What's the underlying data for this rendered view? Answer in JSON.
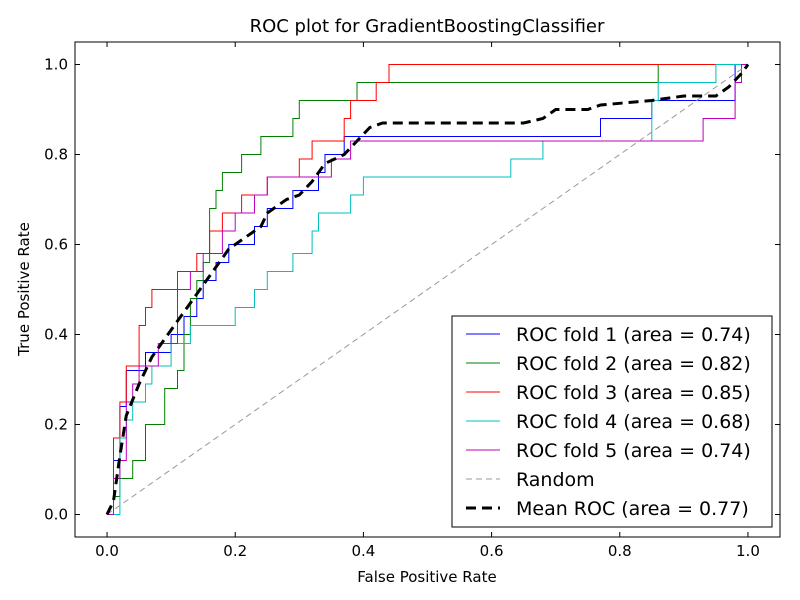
{
  "chart_data": {
    "type": "line",
    "title": "ROC plot for GradientBoostingClassifier",
    "xlabel": "False Positive Rate",
    "ylabel": "True Positive Rate",
    "xlim": [
      -0.05,
      1.05
    ],
    "ylim": [
      -0.05,
      1.05
    ],
    "xticks": [
      0.0,
      0.2,
      0.4,
      0.6,
      0.8,
      1.0
    ],
    "yticks": [
      0.0,
      0.2,
      0.4,
      0.6,
      0.8,
      1.0
    ],
    "xtick_labels": [
      "0.0",
      "0.2",
      "0.4",
      "0.6",
      "0.8",
      "1.0"
    ],
    "ytick_labels": [
      "0.0",
      "0.2",
      "0.4",
      "0.6",
      "0.8",
      "1.0"
    ],
    "grid": false,
    "legend_position": "lower-right",
    "series": [
      {
        "name": "ROC fold 1 (area = 0.74)",
        "color": "#0000ff",
        "dash": "solid",
        "points": [
          [
            0,
            0
          ],
          [
            0.01,
            0
          ],
          [
            0.01,
            0.12
          ],
          [
            0.02,
            0.12
          ],
          [
            0.02,
            0.24
          ],
          [
            0.03,
            0.24
          ],
          [
            0.03,
            0.32
          ],
          [
            0.06,
            0.32
          ],
          [
            0.06,
            0.36
          ],
          [
            0.1,
            0.36
          ],
          [
            0.1,
            0.4
          ],
          [
            0.12,
            0.4
          ],
          [
            0.12,
            0.44
          ],
          [
            0.14,
            0.44
          ],
          [
            0.14,
            0.48
          ],
          [
            0.15,
            0.48
          ],
          [
            0.15,
            0.52
          ],
          [
            0.17,
            0.52
          ],
          [
            0.17,
            0.56
          ],
          [
            0.19,
            0.56
          ],
          [
            0.19,
            0.6
          ],
          [
            0.23,
            0.6
          ],
          [
            0.23,
            0.64
          ],
          [
            0.25,
            0.64
          ],
          [
            0.25,
            0.68
          ],
          [
            0.29,
            0.68
          ],
          [
            0.29,
            0.72
          ],
          [
            0.33,
            0.72
          ],
          [
            0.33,
            0.76
          ],
          [
            0.34,
            0.76
          ],
          [
            0.34,
            0.8
          ],
          [
            0.37,
            0.8
          ],
          [
            0.37,
            0.84
          ],
          [
            0.68,
            0.84
          ],
          [
            0.68,
            0.84
          ],
          [
            0.77,
            0.84
          ],
          [
            0.77,
            0.88
          ],
          [
            0.85,
            0.88
          ],
          [
            0.85,
            0.92
          ],
          [
            0.98,
            0.92
          ],
          [
            0.98,
            1.0
          ],
          [
            1.0,
            1.0
          ]
        ]
      },
      {
        "name": "ROC fold 2 (area = 0.82)",
        "color": "#008000",
        "dash": "solid",
        "points": [
          [
            0,
            0
          ],
          [
            0.01,
            0
          ],
          [
            0.01,
            0.04
          ],
          [
            0.02,
            0.04
          ],
          [
            0.02,
            0.08
          ],
          [
            0.04,
            0.08
          ],
          [
            0.04,
            0.12
          ],
          [
            0.06,
            0.12
          ],
          [
            0.06,
            0.16
          ],
          [
            0.06,
            0.2
          ],
          [
            0.09,
            0.2
          ],
          [
            0.09,
            0.28
          ],
          [
            0.11,
            0.28
          ],
          [
            0.11,
            0.32
          ],
          [
            0.12,
            0.32
          ],
          [
            0.12,
            0.36
          ],
          [
            0.12,
            0.4
          ],
          [
            0.13,
            0.4
          ],
          [
            0.13,
            0.48
          ],
          [
            0.14,
            0.48
          ],
          [
            0.14,
            0.52
          ],
          [
            0.15,
            0.52
          ],
          [
            0.15,
            0.56
          ],
          [
            0.16,
            0.56
          ],
          [
            0.16,
            0.6
          ],
          [
            0.16,
            0.64
          ],
          [
            0.16,
            0.68
          ],
          [
            0.17,
            0.68
          ],
          [
            0.17,
            0.72
          ],
          [
            0.18,
            0.72
          ],
          [
            0.18,
            0.76
          ],
          [
            0.21,
            0.76
          ],
          [
            0.21,
            0.8
          ],
          [
            0.24,
            0.8
          ],
          [
            0.24,
            0.84
          ],
          [
            0.29,
            0.84
          ],
          [
            0.29,
            0.88
          ],
          [
            0.3,
            0.88
          ],
          [
            0.3,
            0.92
          ],
          [
            0.39,
            0.92
          ],
          [
            0.39,
            0.96
          ],
          [
            0.86,
            0.96
          ],
          [
            0.86,
            1.0
          ],
          [
            1.0,
            1.0
          ]
        ]
      },
      {
        "name": "ROC fold 3 (area = 0.85)",
        "color": "#ff0000",
        "dash": "solid",
        "points": [
          [
            0,
            0
          ],
          [
            0.01,
            0
          ],
          [
            0.01,
            0.08
          ],
          [
            0.01,
            0.17
          ],
          [
            0.02,
            0.17
          ],
          [
            0.02,
            0.25
          ],
          [
            0.03,
            0.25
          ],
          [
            0.03,
            0.29
          ],
          [
            0.03,
            0.33
          ],
          [
            0.05,
            0.33
          ],
          [
            0.05,
            0.42
          ],
          [
            0.06,
            0.42
          ],
          [
            0.06,
            0.46
          ],
          [
            0.07,
            0.46
          ],
          [
            0.07,
            0.5
          ],
          [
            0.11,
            0.5
          ],
          [
            0.11,
            0.54
          ],
          [
            0.14,
            0.54
          ],
          [
            0.14,
            0.58
          ],
          [
            0.16,
            0.58
          ],
          [
            0.16,
            0.63
          ],
          [
            0.18,
            0.63
          ],
          [
            0.18,
            0.67
          ],
          [
            0.21,
            0.67
          ],
          [
            0.21,
            0.71
          ],
          [
            0.25,
            0.71
          ],
          [
            0.25,
            0.75
          ],
          [
            0.3,
            0.75
          ],
          [
            0.3,
            0.79
          ],
          [
            0.32,
            0.79
          ],
          [
            0.32,
            0.83
          ],
          [
            0.37,
            0.83
          ],
          [
            0.37,
            0.88
          ],
          [
            0.38,
            0.88
          ],
          [
            0.38,
            0.92
          ],
          [
            0.42,
            0.92
          ],
          [
            0.42,
            0.96
          ],
          [
            0.44,
            0.96
          ],
          [
            0.44,
            1.0
          ],
          [
            1.0,
            1.0
          ]
        ]
      },
      {
        "name": "ROC fold 4 (area = 0.68)",
        "color": "#00bfbf",
        "dash": "solid",
        "points": [
          [
            0,
            0
          ],
          [
            0.02,
            0
          ],
          [
            0.02,
            0.08
          ],
          [
            0.02,
            0.17
          ],
          [
            0.03,
            0.17
          ],
          [
            0.03,
            0.21
          ],
          [
            0.04,
            0.21
          ],
          [
            0.04,
            0.25
          ],
          [
            0.06,
            0.25
          ],
          [
            0.06,
            0.29
          ],
          [
            0.07,
            0.29
          ],
          [
            0.07,
            0.33
          ],
          [
            0.1,
            0.33
          ],
          [
            0.1,
            0.38
          ],
          [
            0.13,
            0.38
          ],
          [
            0.13,
            0.42
          ],
          [
            0.2,
            0.42
          ],
          [
            0.2,
            0.46
          ],
          [
            0.23,
            0.46
          ],
          [
            0.23,
            0.5
          ],
          [
            0.25,
            0.5
          ],
          [
            0.25,
            0.54
          ],
          [
            0.29,
            0.54
          ],
          [
            0.29,
            0.58
          ],
          [
            0.32,
            0.58
          ],
          [
            0.32,
            0.63
          ],
          [
            0.33,
            0.63
          ],
          [
            0.33,
            0.67
          ],
          [
            0.38,
            0.67
          ],
          [
            0.38,
            0.71
          ],
          [
            0.4,
            0.71
          ],
          [
            0.4,
            0.75
          ],
          [
            0.63,
            0.75
          ],
          [
            0.63,
            0.79
          ],
          [
            0.68,
            0.79
          ],
          [
            0.68,
            0.83
          ],
          [
            0.85,
            0.83
          ],
          [
            0.85,
            0.88
          ],
          [
            0.85,
            0.92
          ],
          [
            0.86,
            0.92
          ],
          [
            0.86,
            0.96
          ],
          [
            0.95,
            0.96
          ],
          [
            0.95,
            1.0
          ],
          [
            1.0,
            1.0
          ]
        ]
      },
      {
        "name": "ROC fold 5 (area = 0.74)",
        "color": "#bf00bf",
        "dash": "solid",
        "points": [
          [
            0,
            0
          ],
          [
            0.01,
            0
          ],
          [
            0.01,
            0.08
          ],
          [
            0.02,
            0.08
          ],
          [
            0.02,
            0.12
          ],
          [
            0.03,
            0.12
          ],
          [
            0.03,
            0.25
          ],
          [
            0.04,
            0.25
          ],
          [
            0.04,
            0.29
          ],
          [
            0.05,
            0.29
          ],
          [
            0.05,
            0.33
          ],
          [
            0.08,
            0.33
          ],
          [
            0.08,
            0.38
          ],
          [
            0.11,
            0.38
          ],
          [
            0.11,
            0.5
          ],
          [
            0.13,
            0.5
          ],
          [
            0.13,
            0.54
          ],
          [
            0.15,
            0.54
          ],
          [
            0.15,
            0.58
          ],
          [
            0.18,
            0.58
          ],
          [
            0.18,
            0.63
          ],
          [
            0.2,
            0.63
          ],
          [
            0.2,
            0.67
          ],
          [
            0.23,
            0.67
          ],
          [
            0.23,
            0.71
          ],
          [
            0.25,
            0.71
          ],
          [
            0.25,
            0.75
          ],
          [
            0.35,
            0.75
          ],
          [
            0.35,
            0.79
          ],
          [
            0.38,
            0.79
          ],
          [
            0.38,
            0.83
          ],
          [
            0.93,
            0.83
          ],
          [
            0.93,
            0.88
          ],
          [
            0.98,
            0.88
          ],
          [
            0.98,
            0.96
          ],
          [
            0.99,
            0.96
          ],
          [
            0.99,
            1.0
          ],
          [
            1.0,
            1.0
          ]
        ]
      },
      {
        "name": "Random",
        "color": "#999999",
        "dash": "dashed-thin",
        "points": [
          [
            0,
            0
          ],
          [
            1,
            1
          ]
        ]
      },
      {
        "name": "Mean ROC (area = 0.77)",
        "color": "#000000",
        "dash": "dashed-thick",
        "points": [
          [
            0,
            0
          ],
          [
            0.01,
            0.03
          ],
          [
            0.02,
            0.13
          ],
          [
            0.03,
            0.22
          ],
          [
            0.05,
            0.29
          ],
          [
            0.07,
            0.35
          ],
          [
            0.09,
            0.39
          ],
          [
            0.11,
            0.43
          ],
          [
            0.13,
            0.47
          ],
          [
            0.15,
            0.51
          ],
          [
            0.17,
            0.55
          ],
          [
            0.19,
            0.59
          ],
          [
            0.21,
            0.61
          ],
          [
            0.24,
            0.64
          ],
          [
            0.25,
            0.67
          ],
          [
            0.28,
            0.7
          ],
          [
            0.3,
            0.71
          ],
          [
            0.32,
            0.74
          ],
          [
            0.34,
            0.78
          ],
          [
            0.37,
            0.8
          ],
          [
            0.39,
            0.83
          ],
          [
            0.41,
            0.86
          ],
          [
            0.43,
            0.87
          ],
          [
            0.5,
            0.87
          ],
          [
            0.6,
            0.87
          ],
          [
            0.65,
            0.87
          ],
          [
            0.68,
            0.88
          ],
          [
            0.69,
            0.89
          ],
          [
            0.7,
            0.9
          ],
          [
            0.75,
            0.9
          ],
          [
            0.77,
            0.91
          ],
          [
            0.85,
            0.92
          ],
          [
            0.9,
            0.93
          ],
          [
            0.95,
            0.93
          ],
          [
            0.97,
            0.95
          ],
          [
            0.99,
            0.98
          ],
          [
            1.0,
            1.0
          ]
        ]
      }
    ]
  }
}
